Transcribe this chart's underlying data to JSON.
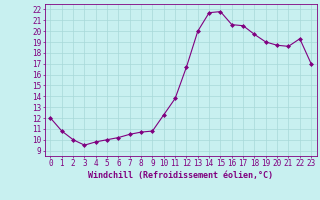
{
  "x": [
    0,
    1,
    2,
    3,
    4,
    5,
    6,
    7,
    8,
    9,
    10,
    11,
    12,
    13,
    14,
    15,
    16,
    17,
    18,
    19,
    20,
    21,
    22,
    23
  ],
  "y": [
    12.0,
    10.8,
    10.0,
    9.5,
    9.8,
    10.0,
    10.2,
    10.5,
    10.7,
    10.8,
    12.3,
    13.8,
    16.7,
    20.0,
    21.7,
    21.8,
    20.6,
    20.5,
    19.7,
    19.0,
    18.7,
    18.6,
    19.3,
    17.0
  ],
  "line_color": "#800080",
  "marker": "D",
  "marker_size": 2.0,
  "bg_color": "#c8f0f0",
  "grid_color": "#a8d8d8",
  "xlabel": "Windchill (Refroidissement éolien,°C)",
  "xlim": [
    -0.5,
    23.5
  ],
  "ylim": [
    8.5,
    22.5
  ],
  "yticks": [
    9,
    10,
    11,
    12,
    13,
    14,
    15,
    16,
    17,
    18,
    19,
    20,
    21,
    22
  ],
  "xticks": [
    0,
    1,
    2,
    3,
    4,
    5,
    6,
    7,
    8,
    9,
    10,
    11,
    12,
    13,
    14,
    15,
    16,
    17,
    18,
    19,
    20,
    21,
    22,
    23
  ],
  "tick_color": "#800080",
  "label_color": "#800080",
  "tick_fontsize": 5.5,
  "xlabel_fontsize": 6.0,
  "linewidth": 0.8
}
